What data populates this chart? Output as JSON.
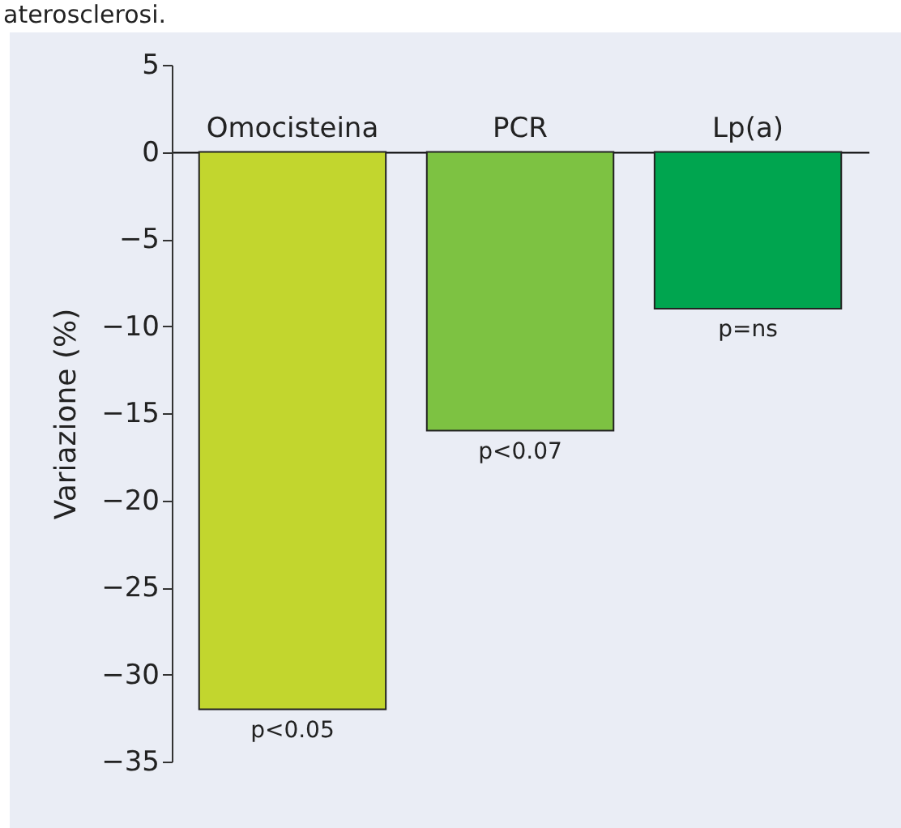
{
  "chart_data": {
    "type": "bar",
    "ylabel": "Variazione (%)",
    "categories": [
      "Omocisteina",
      "PCR",
      "Lp(a)"
    ],
    "values": [
      -32,
      -16,
      -9
    ],
    "colors": [
      "#c2d62e",
      "#7dc242",
      "#00a54f"
    ],
    "ylim": [
      -35,
      5
    ],
    "yticks": [
      -35,
      -30,
      -25,
      -20,
      -15,
      -10,
      -5,
      0,
      5
    ],
    "annotations": [
      "aterosclerosi.",
      {
        "text": "p<0.05",
        "x": "Omocisteina",
        "y": -32
      },
      {
        "text": "p<0.07",
        "x": "PCR",
        "y": -16
      },
      {
        "text": "p=ns",
        "x": "Lp(a)",
        "y": -9
      }
    ]
  }
}
